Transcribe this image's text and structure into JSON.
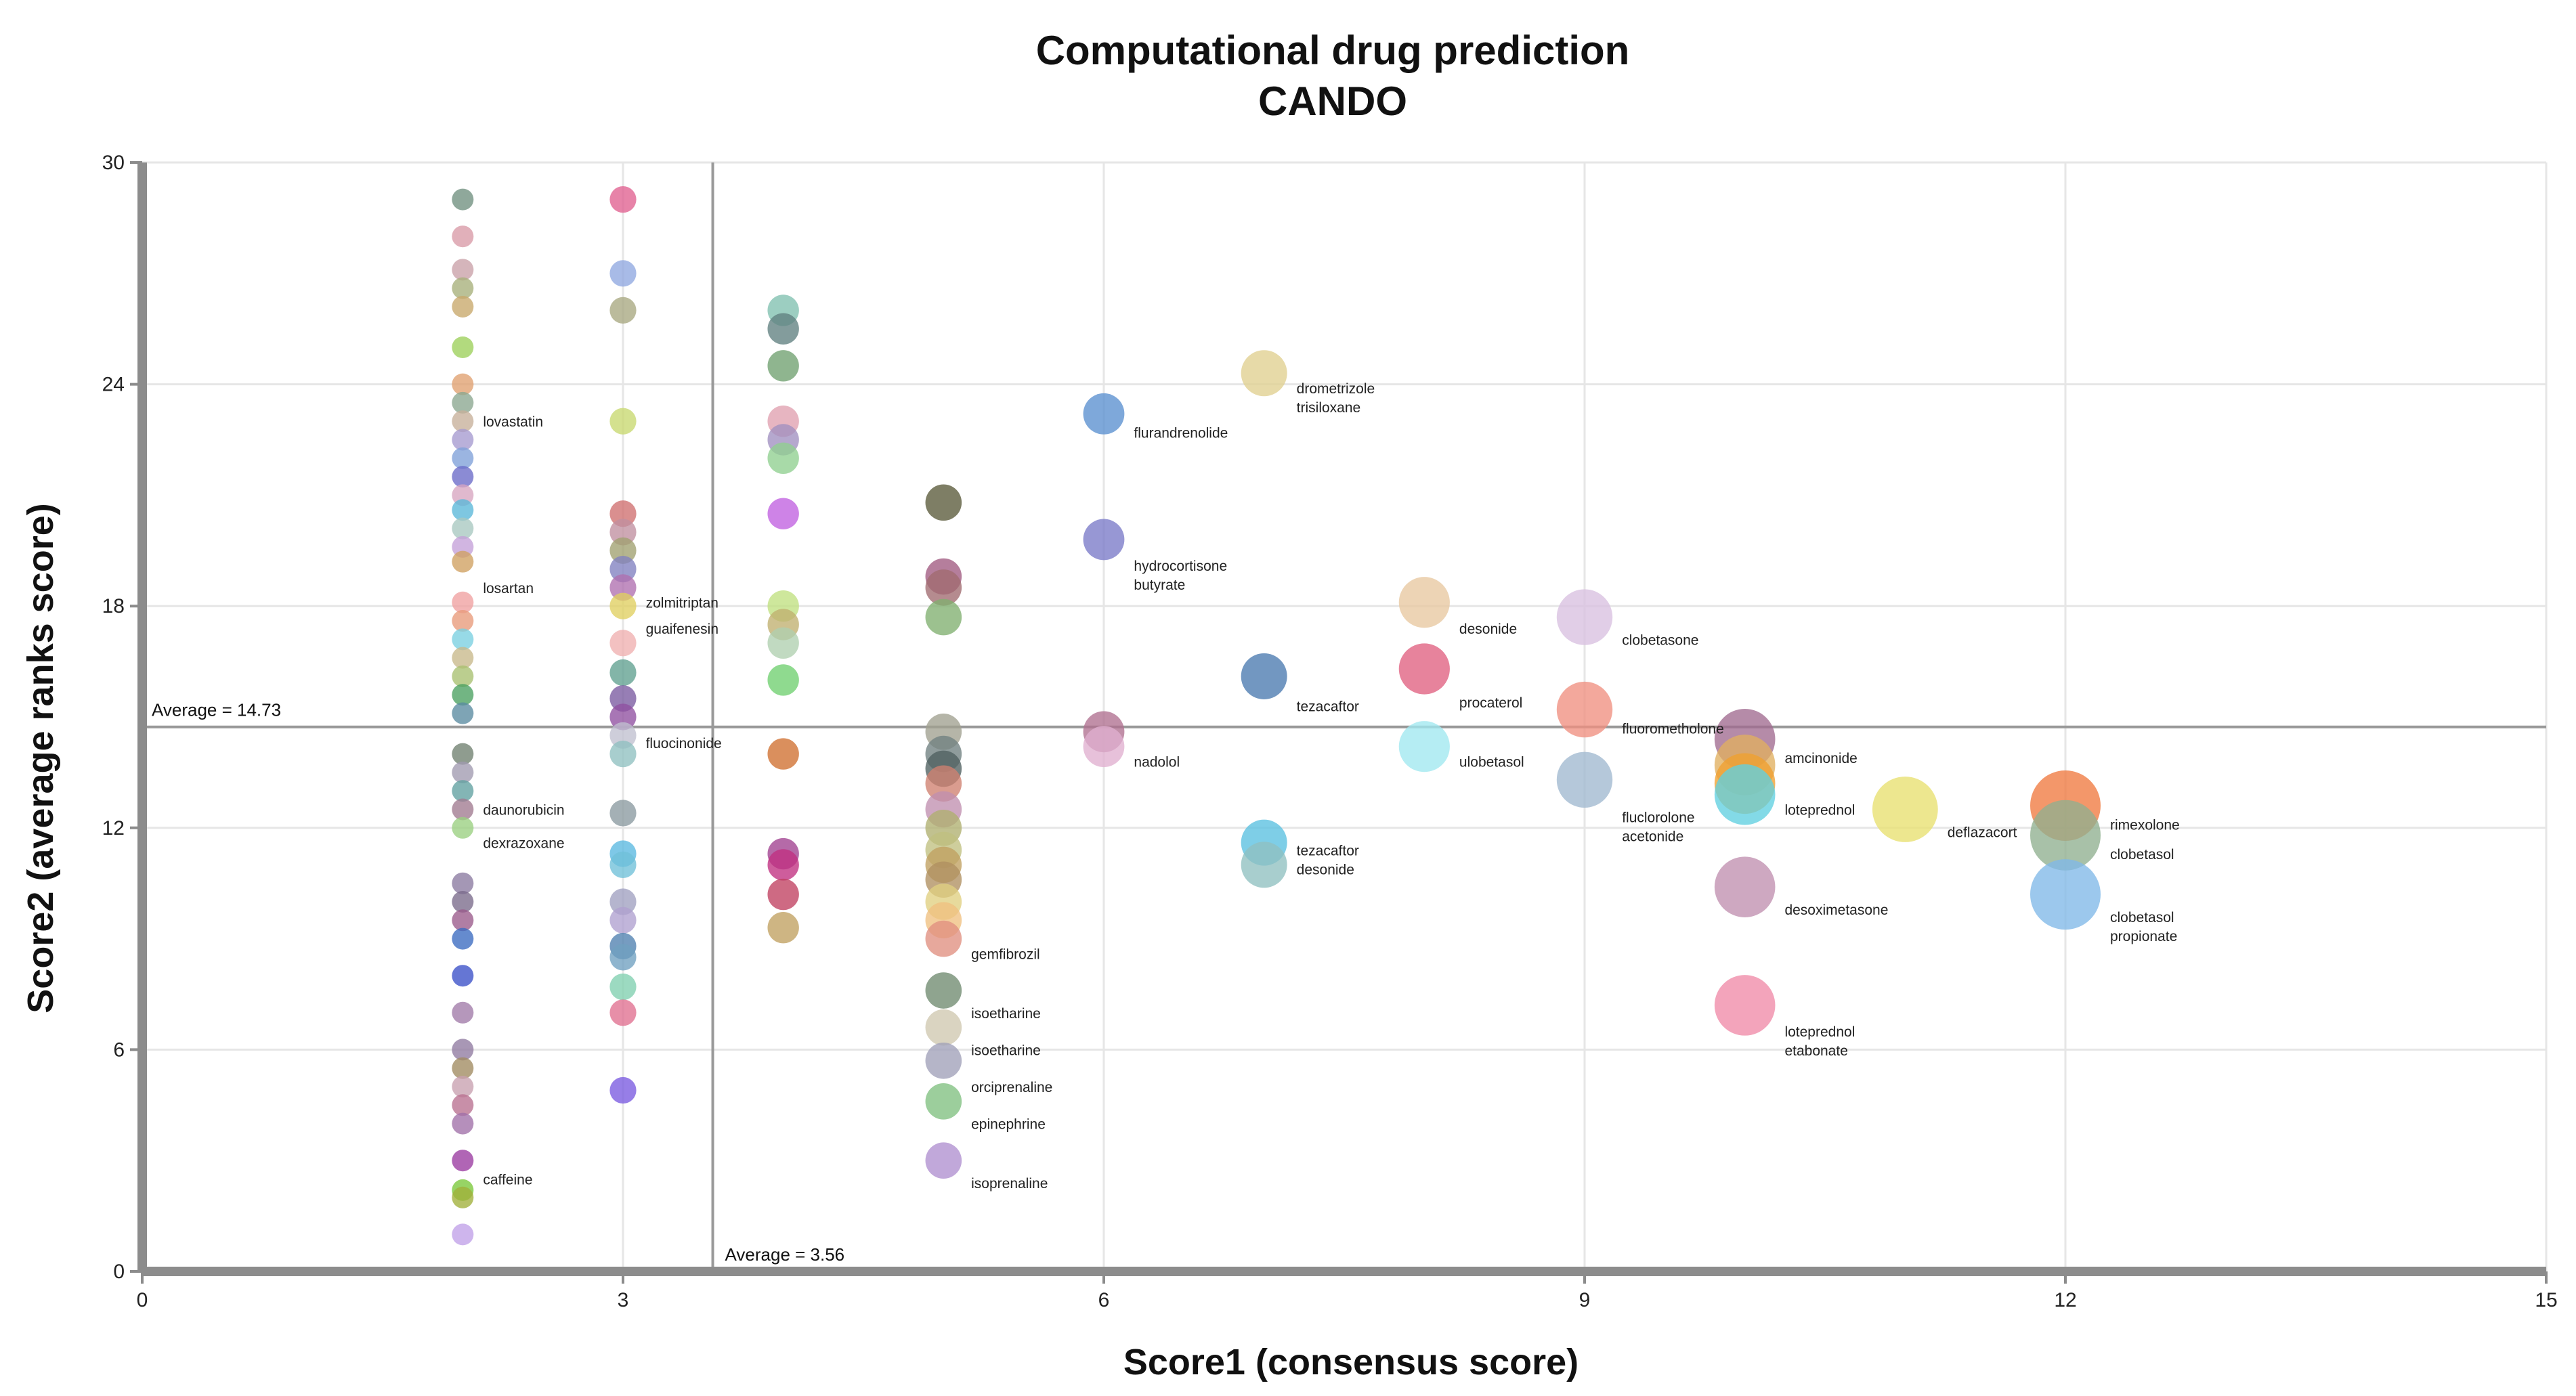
{
  "chart_data": {
    "type": "scatter",
    "title": "Computational drug prediction",
    "subtitle": "CANDO",
    "xlabel": "Score1 (consensus score)",
    "ylabel": "Score2 (average ranks score)",
    "xlim": [
      0,
      15
    ],
    "ylim": [
      0,
      30
    ],
    "xticks": [
      0,
      3,
      6,
      9,
      12,
      15
    ],
    "yticks": [
      0,
      6,
      12,
      18,
      24,
      30
    ],
    "grid": true,
    "reference_lines": [
      {
        "axis": "y",
        "value": 14.73,
        "label": "Average = 14.73"
      },
      {
        "axis": "x",
        "value": 3.56,
        "label": "Average = 3.56"
      }
    ],
    "size_encoding": "bubble area grows with Score1",
    "points": [
      {
        "x": 2,
        "y": 29.0,
        "c": "#6f8f7f"
      },
      {
        "x": 2,
        "y": 28.0,
        "c": "#d89aa6"
      },
      {
        "x": 2,
        "y": 27.1,
        "c": "#c9a0a8"
      },
      {
        "x": 2,
        "y": 26.6,
        "c": "#a7b07a"
      },
      {
        "x": 2,
        "y": 26.1,
        "c": "#c8a86a"
      },
      {
        "x": 2,
        "y": 25.0,
        "c": "#9ccf5a"
      },
      {
        "x": 2,
        "y": 24.0,
        "c": "#e0a070"
      },
      {
        "x": 2,
        "y": 23.5,
        "c": "#8aa690"
      },
      {
        "x": 2,
        "y": 23.0,
        "c": "#c7b09a"
      },
      {
        "x": 2,
        "y": 22.5,
        "c": "#a59ad0"
      },
      {
        "x": 2,
        "y": 22.0,
        "c": "#7fa0d8"
      },
      {
        "x": 2,
        "y": 21.5,
        "c": "#6a6ac8"
      },
      {
        "x": 2,
        "y": 21.0,
        "c": "#d7a5c0"
      },
      {
        "x": 2,
        "y": 20.6,
        "c": "#5ab7d8"
      },
      {
        "x": 2,
        "y": 20.1,
        "c": "#a8c8c0"
      },
      {
        "x": 2,
        "y": 19.6,
        "c": "#c4a0d8"
      },
      {
        "x": 2,
        "y": 19.2,
        "c": "#d0a060"
      },
      {
        "x": 2,
        "y": 18.1,
        "c": "#f0a0a0"
      },
      {
        "x": 2,
        "y": 17.6,
        "c": "#e89a7a"
      },
      {
        "x": 2,
        "y": 17.1,
        "c": "#7ad0e0"
      },
      {
        "x": 2,
        "y": 16.6,
        "c": "#c8b88a"
      },
      {
        "x": 2,
        "y": 16.1,
        "c": "#a8c070"
      },
      {
        "x": 2,
        "y": 15.6,
        "c": "#4aa060"
      },
      {
        "x": 2,
        "y": 15.1,
        "c": "#5a8aa0"
      },
      {
        "x": 2,
        "y": 14.0,
        "c": "#708070"
      },
      {
        "x": 2,
        "y": 13.5,
        "c": "#a09ab0"
      },
      {
        "x": 2,
        "y": 13.0,
        "c": "#60a0a0"
      },
      {
        "x": 2,
        "y": 12.5,
        "c": "#a07a90"
      },
      {
        "x": 2,
        "y": 12.0,
        "c": "#9ad080"
      },
      {
        "x": 2,
        "y": 10.5,
        "c": "#8a7aa0"
      },
      {
        "x": 2,
        "y": 10.0,
        "c": "#7a6a8a"
      },
      {
        "x": 2,
        "y": 9.5,
        "c": "#9a5a8a"
      },
      {
        "x": 2,
        "y": 9.0,
        "c": "#3a6ac0"
      },
      {
        "x": 2,
        "y": 8.0,
        "c": "#3a50c8"
      },
      {
        "x": 2,
        "y": 7.0,
        "c": "#a07aa8"
      },
      {
        "x": 2,
        "y": 6.0,
        "c": "#907aa0"
      },
      {
        "x": 2,
        "y": 5.5,
        "c": "#a08a60"
      },
      {
        "x": 2,
        "y": 5.0,
        "c": "#c8a0b0"
      },
      {
        "x": 2,
        "y": 4.5,
        "c": "#b87090"
      },
      {
        "x": 2,
        "y": 4.0,
        "c": "#a070a8"
      },
      {
        "x": 2,
        "y": 3.0,
        "c": "#9a3aa0"
      },
      {
        "x": 2,
        "y": 2.2,
        "c": "#7ac83a"
      },
      {
        "x": 2,
        "y": 2.0,
        "c": "#a0b03a"
      },
      {
        "x": 2,
        "y": 1.0,
        "c": "#c0a0e8"
      },
      {
        "x": 3,
        "y": 29.0,
        "c": "#e06090"
      },
      {
        "x": 3,
        "y": 27.0,
        "c": "#90a8e0"
      },
      {
        "x": 3,
        "y": 26.0,
        "c": "#a8a880"
      },
      {
        "x": 3,
        "y": 23.0,
        "c": "#c8d870"
      },
      {
        "x": 3,
        "y": 20.5,
        "c": "#d07070"
      },
      {
        "x": 3,
        "y": 20.0,
        "c": "#c090a0"
      },
      {
        "x": 3,
        "y": 19.5,
        "c": "#a0a070"
      },
      {
        "x": 3,
        "y": 19.0,
        "c": "#8080c0"
      },
      {
        "x": 3,
        "y": 18.5,
        "c": "#b070b0"
      },
      {
        "x": 3,
        "y": 18.0,
        "c": "#e0d060"
      },
      {
        "x": 3,
        "y": 17.0,
        "c": "#f0b0b0"
      },
      {
        "x": 3,
        "y": 16.2,
        "c": "#60a090"
      },
      {
        "x": 3,
        "y": 15.5,
        "c": "#7a5aa0"
      },
      {
        "x": 3,
        "y": 15.0,
        "c": "#9050a0"
      },
      {
        "x": 3,
        "y": 14.5,
        "c": "#c0c0d0"
      },
      {
        "x": 3,
        "y": 14.0,
        "c": "#90c0c0"
      },
      {
        "x": 3,
        "y": 12.4,
        "c": "#8a9aa0"
      },
      {
        "x": 3,
        "y": 11.3,
        "c": "#5ab8e0"
      },
      {
        "x": 3,
        "y": 11.0,
        "c": "#70c0d8"
      },
      {
        "x": 3,
        "y": 10.0,
        "c": "#a0a0c0"
      },
      {
        "x": 3,
        "y": 9.5,
        "c": "#b0a0d0"
      },
      {
        "x": 3,
        "y": 8.8,
        "c": "#5080b0"
      },
      {
        "x": 3,
        "y": 8.5,
        "c": "#70a0c0"
      },
      {
        "x": 3,
        "y": 7.7,
        "c": "#80d0b0"
      },
      {
        "x": 3,
        "y": 7.0,
        "c": "#e07090"
      },
      {
        "x": 3,
        "y": 4.9,
        "c": "#7a5ae0"
      },
      {
        "x": 4,
        "y": 26.0,
        "c": "#80c0b0"
      },
      {
        "x": 4,
        "y": 25.5,
        "c": "#608080"
      },
      {
        "x": 4,
        "y": 24.5,
        "c": "#70a070"
      },
      {
        "x": 4,
        "y": 23.0,
        "c": "#e0a0b0"
      },
      {
        "x": 4,
        "y": 22.5,
        "c": "#a090c0"
      },
      {
        "x": 4,
        "y": 22.0,
        "c": "#90d090"
      },
      {
        "x": 4,
        "y": 20.5,
        "c": "#c060e0"
      },
      {
        "x": 4,
        "y": 18.0,
        "c": "#c0e080"
      },
      {
        "x": 4,
        "y": 17.5,
        "c": "#c0b070"
      },
      {
        "x": 4,
        "y": 17.0,
        "c": "#b0d0b0"
      },
      {
        "x": 4,
        "y": 16.0,
        "c": "#70d070"
      },
      {
        "x": 4,
        "y": 14.0,
        "c": "#d07030"
      },
      {
        "x": 4,
        "y": 11.3,
        "c": "#a04090"
      },
      {
        "x": 4,
        "y": 11.0,
        "c": "#c03080"
      },
      {
        "x": 4,
        "y": 10.2,
        "c": "#c04060"
      },
      {
        "x": 4,
        "y": 9.3,
        "c": "#c0a060"
      },
      {
        "x": 5,
        "y": 20.8,
        "c": "#5a5a3a"
      },
      {
        "x": 5,
        "y": 18.8,
        "c": "#a05a80"
      },
      {
        "x": 5,
        "y": 18.5,
        "c": "#a06a70"
      },
      {
        "x": 5,
        "y": 17.7,
        "c": "#80b070"
      },
      {
        "x": 5,
        "y": 14.6,
        "c": "#a0a090"
      },
      {
        "x": 5,
        "y": 14.0,
        "c": "#708080"
      },
      {
        "x": 5,
        "y": 13.6,
        "c": "#506060"
      },
      {
        "x": 5,
        "y": 13.2,
        "c": "#d08070"
      },
      {
        "x": 5,
        "y": 12.5,
        "c": "#c090b0"
      },
      {
        "x": 5,
        "y": 12.0,
        "c": "#b0b070"
      },
      {
        "x": 5,
        "y": 11.4,
        "c": "#c0c080"
      },
      {
        "x": 5,
        "y": 11.0,
        "c": "#c0a060"
      },
      {
        "x": 5,
        "y": 10.6,
        "c": "#b09060"
      },
      {
        "x": 5,
        "y": 10.0,
        "c": "#e0d080"
      },
      {
        "x": 5,
        "y": 9.5,
        "c": "#f0c080"
      },
      {
        "x": 5,
        "y": 9.0,
        "c": "#e09080"
      },
      {
        "x": 5,
        "y": 7.6,
        "c": "#708a70"
      },
      {
        "x": 5,
        "y": 6.6,
        "c": "#d0c8b0"
      },
      {
        "x": 5,
        "y": 5.7,
        "c": "#a0a0b8"
      },
      {
        "x": 5,
        "y": 4.6,
        "c": "#80c080"
      },
      {
        "x": 5,
        "y": 3.0,
        "c": "#b090d0"
      },
      {
        "x": 6,
        "y": 23.2,
        "c": "#5a90d0"
      },
      {
        "x": 6,
        "y": 19.8,
        "c": "#7a7ac8"
      },
      {
        "x": 6,
        "y": 14.6,
        "c": "#b07090"
      },
      {
        "x": 6,
        "y": 14.2,
        "c": "#e0b0d0"
      },
      {
        "x": 7,
        "y": 24.3,
        "c": "#e0d090"
      },
      {
        "x": 7,
        "y": 16.1,
        "c": "#4a7ab0"
      },
      {
        "x": 7,
        "y": 11.6,
        "c": "#5ac0e0"
      },
      {
        "x": 7,
        "y": 11.0,
        "c": "#90c0c0"
      },
      {
        "x": 8,
        "y": 18.1,
        "c": "#e8c8a0"
      },
      {
        "x": 8,
        "y": 16.3,
        "c": "#e06080"
      },
      {
        "x": 8,
        "y": 14.2,
        "c": "#a0e8f0"
      },
      {
        "x": 9,
        "y": 17.7,
        "c": "#d8c0e0"
      },
      {
        "x": 9,
        "y": 15.2,
        "c": "#f09080"
      },
      {
        "x": 9,
        "y": 13.3,
        "c": "#a0b8d0"
      },
      {
        "x": 10,
        "y": 14.4,
        "c": "#a06a90"
      },
      {
        "x": 10,
        "y": 13.7,
        "c": "#e0b060"
      },
      {
        "x": 10,
        "y": 13.2,
        "c": "#f0a030"
      },
      {
        "x": 10,
        "y": 12.9,
        "c": "#60d0e0"
      },
      {
        "x": 10,
        "y": 10.4,
        "c": "#c090b0"
      },
      {
        "x": 10,
        "y": 7.2,
        "c": "#f08aa8"
      },
      {
        "x": 11,
        "y": 12.5,
        "c": "#e8e070"
      },
      {
        "x": 12,
        "y": 12.6,
        "c": "#f07a40"
      },
      {
        "x": 12,
        "y": 11.8,
        "c": "#90b090"
      },
      {
        "x": 12,
        "y": 10.2,
        "c": "#80b8e8"
      }
    ],
    "labels": [
      {
        "x": 2,
        "y": 23.0,
        "lines": [
          "lovastatin"
        ]
      },
      {
        "x": 2,
        "y": 18.5,
        "lines": [
          "losartan"
        ]
      },
      {
        "x": 2,
        "y": 12.5,
        "lines": [
          "daunorubicin"
        ]
      },
      {
        "x": 2,
        "y": 11.6,
        "lines": [
          "dexrazoxane"
        ]
      },
      {
        "x": 2,
        "y": 2.5,
        "lines": [
          "caffeine"
        ]
      },
      {
        "x": 3,
        "y": 18.1,
        "lines": [
          "zolmitriptan"
        ]
      },
      {
        "x": 3,
        "y": 17.4,
        "lines": [
          "guaifenesin"
        ]
      },
      {
        "x": 3,
        "y": 14.3,
        "lines": [
          "fluocinonide"
        ]
      },
      {
        "x": 5,
        "y": 8.6,
        "lines": [
          "gemfibrozil"
        ]
      },
      {
        "x": 5,
        "y": 7.0,
        "lines": [
          "isoetharine"
        ]
      },
      {
        "x": 5,
        "y": 6.0,
        "lines": [
          "isoetharine"
        ]
      },
      {
        "x": 5,
        "y": 5.0,
        "lines": [
          "orciprenaline"
        ]
      },
      {
        "x": 5,
        "y": 4.0,
        "lines": [
          "epinephrine"
        ]
      },
      {
        "x": 5,
        "y": 2.4,
        "lines": [
          "isoprenaline"
        ]
      },
      {
        "x": 6,
        "y": 22.7,
        "lines": [
          "flurandrenolide"
        ]
      },
      {
        "x": 6,
        "y": 19.1,
        "lines": [
          "hydrocortisone",
          "butyrate"
        ]
      },
      {
        "x": 6,
        "y": 13.8,
        "lines": [
          "nadolol"
        ]
      },
      {
        "x": 7,
        "y": 23.9,
        "lines": [
          "drometrizole",
          "trisiloxane"
        ]
      },
      {
        "x": 7,
        "y": 15.3,
        "lines": [
          "tezacaftor"
        ]
      },
      {
        "x": 7,
        "y": 11.4,
        "lines": [
          "tezacaftor",
          "desonide"
        ]
      },
      {
        "x": 8,
        "y": 17.4,
        "lines": [
          "desonide"
        ]
      },
      {
        "x": 8,
        "y": 15.4,
        "lines": [
          "procaterol"
        ]
      },
      {
        "x": 8,
        "y": 13.8,
        "lines": [
          "ulobetasol"
        ]
      },
      {
        "x": 9,
        "y": 17.1,
        "lines": [
          "clobetasone"
        ]
      },
      {
        "x": 9,
        "y": 14.7,
        "lines": [
          "fluorometholone"
        ]
      },
      {
        "x": 9,
        "y": 12.3,
        "lines": [
          "fluclorolone",
          "acetonide"
        ]
      },
      {
        "x": 10,
        "y": 13.9,
        "lines": [
          "amcinonide"
        ]
      },
      {
        "x": 10,
        "y": 12.5,
        "lines": [
          "loteprednol"
        ]
      },
      {
        "x": 10,
        "y": 9.8,
        "lines": [
          "desoximetasone"
        ]
      },
      {
        "x": 10,
        "y": 6.5,
        "lines": [
          "loteprednol",
          "etabonate"
        ]
      },
      {
        "x": 11,
        "y": 11.9,
        "lines": [
          "deflazacort"
        ]
      },
      {
        "x": 12,
        "y": 12.1,
        "lines": [
          "rimexolone"
        ]
      },
      {
        "x": 12,
        "y": 11.3,
        "lines": [
          "clobetasol"
        ]
      },
      {
        "x": 12,
        "y": 9.6,
        "lines": [
          "clobetasol",
          "propionate"
        ]
      }
    ]
  }
}
